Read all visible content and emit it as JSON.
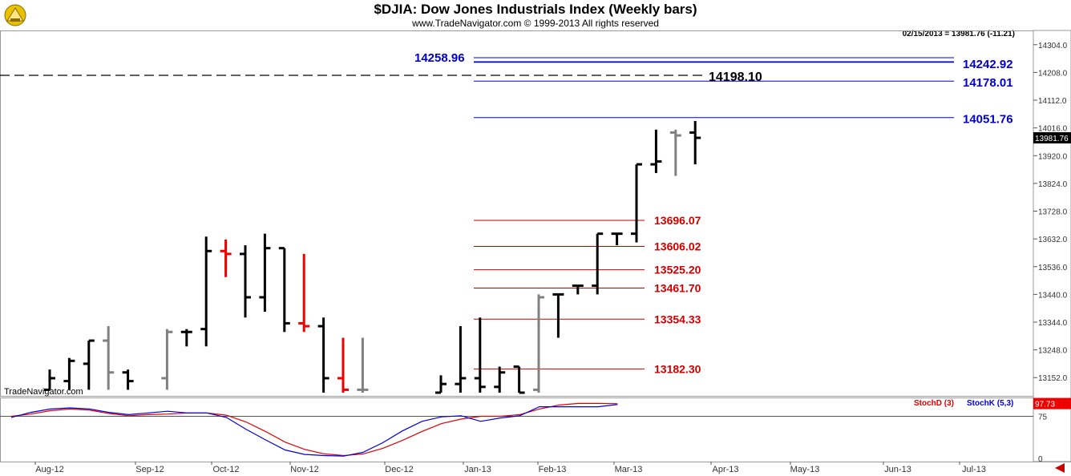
{
  "header": {
    "title": "$DJIA:  Dow Jones Industrials Index  (Weekly bars)",
    "copyright": "www.TradeNavigator.com © 1999-2013 All rights reserved",
    "last_quote": "02/15/2013 = 13981.76 (-11.21)",
    "watermark": "TradeNavigator.com"
  },
  "colors": {
    "bar_up": "#000000",
    "bar_gray": "#808080",
    "bar_red": "#ee0000",
    "fib_blue": "#0000cc",
    "fib_red": "#cc0000",
    "stoch_d": "#dd0000",
    "stoch_k": "#0000dd"
  },
  "chart_data": [
    {
      "type": "ohlc",
      "ylim": [
        13100,
        14320
      ],
      "y_ticks": [
        "14304.0",
        "14208.0",
        "14112.0",
        "14016.0",
        "13920.0",
        "13824.0",
        "13728.0",
        "13632.0",
        "13536.0",
        "13440.0",
        "13344.0",
        "13248.0",
        "13152.0"
      ],
      "x_ticks": [
        "Aug-12",
        "Sep-12",
        "Oct-12",
        "Nov-12",
        "Dec-12",
        "Jan-13",
        "Feb-13",
        "Mar-13",
        "Apr-13",
        "May-13",
        "Jun-13",
        "Jul-13"
      ],
      "current_price_label": "13981.76",
      "bars": [
        {
          "week": 0,
          "open": 13110,
          "high": 13180,
          "low": 13110,
          "close": 13150,
          "color": "black"
        },
        {
          "week": 1,
          "open": 13140,
          "high": 13220,
          "low": 13110,
          "close": 13210,
          "color": "black"
        },
        {
          "week": 2,
          "open": 13200,
          "high": 13280,
          "low": 13110,
          "close": 13280,
          "color": "black"
        },
        {
          "week": 3,
          "open": 13280,
          "high": 13330,
          "low": 13110,
          "close": 13170,
          "color": "gray"
        },
        {
          "week": 4,
          "open": 13170,
          "high": 13180,
          "low": 13110,
          "close": 13140,
          "color": "black"
        },
        {
          "week": 6,
          "open": 13150,
          "high": 13320,
          "low": 13110,
          "close": 13310,
          "color": "gray"
        },
        {
          "week": 7,
          "open": 13310,
          "high": 13320,
          "low": 13260,
          "close": 13310,
          "color": "black"
        },
        {
          "week": 8,
          "open": 13320,
          "high": 13640,
          "low": 13260,
          "close": 13590,
          "color": "black"
        },
        {
          "week": 9,
          "open": 13590,
          "high": 13630,
          "low": 13500,
          "close": 13580,
          "color": "red"
        },
        {
          "week": 10,
          "open": 13580,
          "high": 13610,
          "low": 13360,
          "close": 13430,
          "color": "black"
        },
        {
          "week": 11,
          "open": 13430,
          "high": 13650,
          "low": 13380,
          "close": 13600,
          "color": "black"
        },
        {
          "week": 12,
          "open": 13600,
          "high": 13600,
          "low": 13310,
          "close": 13340,
          "color": "black"
        },
        {
          "week": 13,
          "open": 13340,
          "high": 13580,
          "low": 13310,
          "close": 13330,
          "color": "red"
        },
        {
          "week": 14,
          "open": 13330,
          "high": 13360,
          "low": 13100,
          "close": 13150,
          "color": "black"
        },
        {
          "week": 15,
          "open": 13150,
          "high": 13290,
          "low": 13100,
          "close": 13110,
          "color": "red"
        },
        {
          "week": 16,
          "open": 13110,
          "high": 13290,
          "low": 13100,
          "close": 13110,
          "color": "gray"
        },
        {
          "week": 20,
          "open": 13100,
          "high": 13160,
          "low": 13100,
          "close": 13130,
          "color": "black"
        },
        {
          "week": 21,
          "open": 13130,
          "high": 13330,
          "low": 13100,
          "close": 13150,
          "color": "black"
        },
        {
          "week": 22,
          "open": 13150,
          "high": 13360,
          "low": 13100,
          "close": 13120,
          "color": "black"
        },
        {
          "week": 23,
          "open": 13120,
          "high": 13190,
          "low": 13100,
          "close": 13170,
          "color": "black"
        },
        {
          "week": 24,
          "open": 13190,
          "high": 13190,
          "low": 13100,
          "close": 13100,
          "color": "black"
        },
        {
          "week": 25,
          "open": 13110,
          "high": 13440,
          "low": 13100,
          "close": 13430,
          "color": "gray"
        },
        {
          "week": 26,
          "open": 13440,
          "high": 13440,
          "low": 13290,
          "close": 13440,
          "color": "black"
        },
        {
          "week": 27,
          "open": 13470,
          "high": 13470,
          "low": 13440,
          "close": 13470,
          "color": "black"
        },
        {
          "week": 28,
          "open": 13470,
          "high": 13650,
          "low": 13440,
          "close": 13650,
          "color": "black"
        },
        {
          "week": 29,
          "open": 13650,
          "high": 13650,
          "low": 13610,
          "close": 13650,
          "color": "black"
        },
        {
          "week": 30,
          "open": 13650,
          "high": 13890,
          "low": 13620,
          "close": 13890,
          "color": "black"
        },
        {
          "week": 31,
          "open": 13890,
          "high": 14010,
          "low": 13860,
          "close": 13900,
          "color": "black"
        },
        {
          "week": 32,
          "open": 14000,
          "high": 14010,
          "low": 13850,
          "close": 13990,
          "color": "gray"
        },
        {
          "week": 33,
          "open": 14000,
          "high": 14040,
          "low": 13890,
          "close": 13981.76,
          "color": "black"
        }
      ],
      "levels_blue": [
        {
          "label": "14258.96",
          "value": 14258.96
        },
        {
          "label": "14242.92",
          "value": 14242.92
        },
        {
          "label": "14178.01",
          "value": 14178.01
        },
        {
          "label": "14051.76",
          "value": 14051.76
        }
      ],
      "level_dashed": {
        "label": "14198.10",
        "value": 14198.1
      },
      "levels_red": [
        {
          "label": "13696.07",
          "value": 13696.07
        },
        {
          "label": "13606.02",
          "value": 13606.02
        },
        {
          "label": "13525.20",
          "value": 13525.2
        },
        {
          "label": "13461.70",
          "value": 13461.7
        },
        {
          "label": "13354.33",
          "value": 13354.33
        },
        {
          "label": "13182.30",
          "value": 13182.3
        }
      ]
    },
    {
      "type": "line",
      "title": "",
      "ylim": [
        0,
        100
      ],
      "y_ticks": [
        "75",
        "0"
      ],
      "current_label": "97.73",
      "legend": [
        "StochD (3)",
        "StochK (5,3)"
      ],
      "series": [
        {
          "name": "StochD (3)",
          "values": [
            75,
            79,
            85,
            88,
            86,
            80,
            76,
            78,
            79,
            81,
            81,
            77,
            65,
            48,
            29,
            16,
            8,
            5,
            8,
            18,
            32,
            48,
            62,
            70,
            75,
            75,
            78,
            88,
            95,
            98,
            98,
            97.5
          ]
        },
        {
          "name": "StochK (5,3)",
          "values": [
            73,
            82,
            88,
            90,
            88,
            82,
            78,
            81,
            84,
            81,
            81,
            73,
            52,
            33,
            15,
            7,
            5,
            4,
            11,
            28,
            49,
            66,
            74,
            76,
            66,
            72,
            76,
            92,
            92,
            92,
            92,
            96
          ]
        }
      ]
    }
  ]
}
